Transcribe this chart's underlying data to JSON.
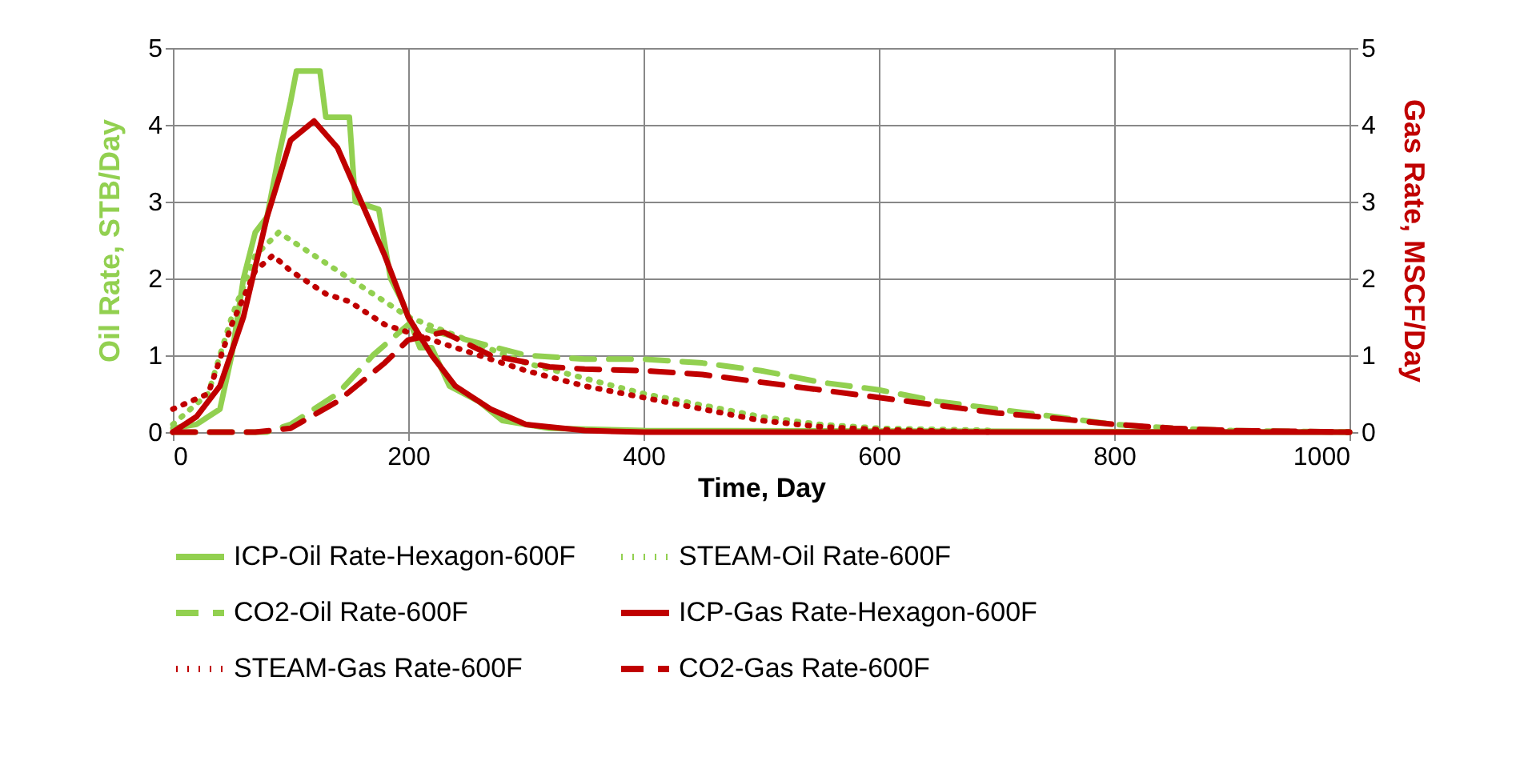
{
  "chart_data": {
    "type": "line",
    "xlabel": "Time, Day",
    "ylabel": "Oil Rate, STB/Day",
    "y2label": "Gas Rate, MSCF/Day",
    "xlim": [
      0,
      1000
    ],
    "xticks": [
      0,
      200,
      400,
      600,
      800,
      1000
    ],
    "ylim": [
      0,
      5
    ],
    "yticks": [
      0,
      1,
      2,
      3,
      4,
      5
    ],
    "y2lim": [
      0,
      5
    ],
    "y2ticks": [
      0,
      1,
      2,
      3,
      4,
      5
    ],
    "grid": true,
    "legend": "bottom",
    "marker": "none",
    "series": [
      {
        "name": "ICP-Oil Rate-Hexagon-600F",
        "color": "#92d050",
        "line_style": "solid",
        "x": [
          0,
          20,
          40,
          50,
          60,
          70,
          80,
          90,
          100,
          105,
          125,
          130,
          150,
          155,
          175,
          185,
          195,
          210,
          220,
          235,
          260,
          280,
          320,
          400,
          1000
        ],
        "values": [
          0.05,
          0.1,
          0.3,
          1.0,
          2.0,
          2.6,
          2.8,
          3.6,
          4.3,
          4.7,
          4.7,
          4.1,
          4.1,
          3.0,
          2.9,
          2.0,
          1.7,
          1.1,
          1.1,
          0.6,
          0.4,
          0.15,
          0.05,
          0.02,
          0
        ]
      },
      {
        "name": "STEAM-Oil Rate-600F",
        "color": "#92d050",
        "line_style": "dotted",
        "x": [
          0,
          30,
          50,
          70,
          90,
          110,
          130,
          150,
          170,
          200,
          250,
          300,
          350,
          400,
          450,
          500,
          550,
          600,
          700
        ],
        "values": [
          0.1,
          0.5,
          1.5,
          2.3,
          2.6,
          2.4,
          2.2,
          2.0,
          1.8,
          1.5,
          1.2,
          0.9,
          0.7,
          0.5,
          0.35,
          0.2,
          0.1,
          0.05,
          0.02
        ]
      },
      {
        "name": "CO2-Oil Rate-600F",
        "color": "#92d050",
        "line_style": "dashed",
        "x": [
          0,
          80,
          100,
          140,
          170,
          200,
          250,
          300,
          350,
          400,
          450,
          500,
          550,
          600,
          650,
          700,
          750,
          800,
          850,
          900,
          1000
        ],
        "values": [
          0,
          0,
          0.1,
          0.5,
          1.0,
          1.4,
          1.2,
          1.0,
          0.95,
          0.95,
          0.9,
          0.8,
          0.65,
          0.55,
          0.4,
          0.3,
          0.2,
          0.1,
          0.05,
          0.02,
          0
        ]
      },
      {
        "name": "ICP-Gas Rate-Hexagon-600F",
        "color": "#c00000",
        "line_style": "solid",
        "axis": "y2",
        "x": [
          0,
          20,
          40,
          60,
          80,
          100,
          120,
          140,
          160,
          180,
          200,
          220,
          240,
          270,
          300,
          350,
          400,
          1000
        ],
        "values": [
          0,
          0.2,
          0.6,
          1.5,
          2.8,
          3.8,
          4.05,
          3.7,
          3.0,
          2.3,
          1.5,
          1.0,
          0.6,
          0.3,
          0.1,
          0.02,
          0,
          0
        ]
      },
      {
        "name": "STEAM-Gas Rate-600F",
        "color": "#c00000",
        "line_style": "dotted",
        "axis": "y2",
        "x": [
          0,
          30,
          50,
          70,
          85,
          100,
          130,
          150,
          180,
          220,
          260,
          300,
          350,
          400,
          450,
          500,
          550,
          600,
          700
        ],
        "values": [
          0.3,
          0.5,
          1.4,
          2.1,
          2.3,
          2.1,
          1.8,
          1.7,
          1.4,
          1.2,
          1.0,
          0.8,
          0.6,
          0.45,
          0.3,
          0.15,
          0.07,
          0.03,
          0
        ]
      },
      {
        "name": "CO2-Gas Rate-600F",
        "color": "#c00000",
        "line_style": "dashed",
        "axis": "y2",
        "x": [
          0,
          70,
          100,
          140,
          180,
          200,
          230,
          270,
          320,
          350,
          400,
          450,
          500,
          550,
          600,
          650,
          700,
          750,
          800,
          850,
          900,
          1000
        ],
        "values": [
          0,
          0,
          0.05,
          0.4,
          0.9,
          1.2,
          1.3,
          1.0,
          0.85,
          0.82,
          0.8,
          0.75,
          0.65,
          0.55,
          0.45,
          0.35,
          0.25,
          0.18,
          0.1,
          0.05,
          0.02,
          0
        ]
      }
    ]
  }
}
